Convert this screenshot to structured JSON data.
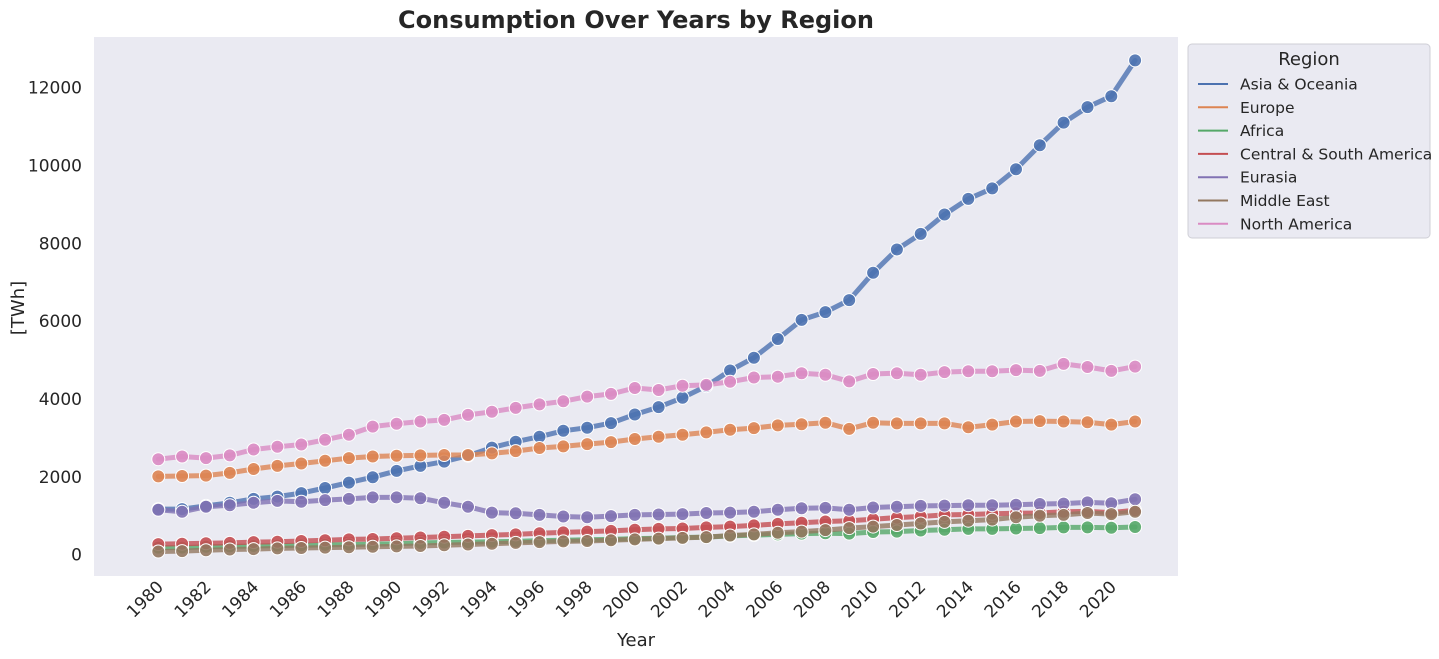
{
  "chart_data": {
    "type": "line",
    "title": "Consumption Over Years by Region",
    "xlabel": "Year",
    "ylabel": "[TWh]",
    "xlim": [
      1977.3,
      2022.8
    ],
    "ylim": [
      -550,
      13300
    ],
    "x_ticks": [
      "1980",
      "1982",
      "1984",
      "1986",
      "1988",
      "1990",
      "1992",
      "1994",
      "1996",
      "1998",
      "2000",
      "2002",
      "2004",
      "2006",
      "2008",
      "2010",
      "2012",
      "2014",
      "2016",
      "2018",
      "2020"
    ],
    "y_ticks": [
      "0",
      "2000",
      "4000",
      "6000",
      "8000",
      "10000",
      "12000"
    ],
    "grid": false,
    "legend": {
      "title": "Region",
      "placement": "outside upper-right"
    },
    "x": [
      1980,
      1981,
      1982,
      1983,
      1984,
      1985,
      1986,
      1987,
      1988,
      1989,
      1990,
      1991,
      1992,
      1993,
      1994,
      1995,
      1996,
      1997,
      1998,
      1999,
      2000,
      2001,
      2002,
      2003,
      2004,
      2005,
      2006,
      2007,
      2008,
      2009,
      2010,
      2011,
      2012,
      2013,
      2014,
      2015,
      2016,
      2017,
      2018,
      2019,
      2020,
      2021
    ],
    "series": [
      {
        "name": "Asia & Oceania",
        "color": "#4c72b0",
        "values": [
          1170,
          1170,
          1250,
          1330,
          1430,
          1490,
          1580,
          1710,
          1850,
          1990,
          2150,
          2280,
          2390,
          2540,
          2750,
          2900,
          3030,
          3180,
          3260,
          3380,
          3600,
          3790,
          4030,
          4330,
          4730,
          5060,
          5540,
          6030,
          6230,
          6540,
          7240,
          7840,
          8240,
          8740,
          9140,
          9410,
          9900,
          10520,
          11100,
          11500,
          11780,
          12700
        ]
      },
      {
        "name": "Europe",
        "color": "#dd8452",
        "values": [
          2010,
          2020,
          2030,
          2100,
          2200,
          2280,
          2340,
          2410,
          2480,
          2520,
          2540,
          2550,
          2560,
          2560,
          2600,
          2660,
          2740,
          2780,
          2840,
          2890,
          2970,
          3030,
          3080,
          3140,
          3210,
          3250,
          3320,
          3350,
          3390,
          3230,
          3390,
          3370,
          3370,
          3370,
          3270,
          3340,
          3420,
          3430,
          3420,
          3400,
          3340,
          3420
        ]
      },
      {
        "name": "Africa",
        "color": "#55a868",
        "values": [
          180,
          180,
          200,
          210,
          220,
          230,
          240,
          250,
          260,
          270,
          280,
          300,
          310,
          320,
          330,
          340,
          360,
          370,
          380,
          390,
          410,
          420,
          440,
          450,
          480,
          500,
          520,
          540,
          550,
          540,
          580,
          590,
          620,
          640,
          660,
          660,
          670,
          680,
          700,
          700,
          690,
          710
        ]
      },
      {
        "name": "Central & South America",
        "color": "#c44e52",
        "values": [
          270,
          280,
          290,
          300,
          320,
          330,
          350,
          370,
          390,
          400,
          420,
          440,
          460,
          480,
          500,
          520,
          550,
          570,
          590,
          610,
          640,
          660,
          670,
          700,
          720,
          750,
          790,
          820,
          850,
          870,
          910,
          950,
          980,
          1020,
          1030,
          1050,
          1060,
          1070,
          1100,
          1110,
          1080,
          1140
        ]
      },
      {
        "name": "Eurasia",
        "color": "#8172b3",
        "values": [
          1150,
          1100,
          1230,
          1270,
          1330,
          1380,
          1360,
          1400,
          1430,
          1470,
          1470,
          1450,
          1330,
          1230,
          1080,
          1060,
          1020,
          980,
          960,
          990,
          1020,
          1030,
          1040,
          1070,
          1080,
          1100,
          1150,
          1190,
          1200,
          1150,
          1210,
          1230,
          1250,
          1260,
          1270,
          1270,
          1280,
          1300,
          1310,
          1340,
          1320,
          1420
        ]
      },
      {
        "name": "Middle East",
        "color": "#937860",
        "values": [
          80,
          90,
          110,
          130,
          140,
          160,
          170,
          180,
          190,
          200,
          210,
          220,
          240,
          260,
          280,
          300,
          320,
          340,
          350,
          370,
          390,
          410,
          430,
          450,
          490,
          520,
          560,
          590,
          630,
          680,
          720,
          760,
          800,
          840,
          870,
          900,
          960,
          1000,
          1020,
          1070,
          1040,
          1100
        ]
      },
      {
        "name": "North America",
        "color": "#da8bc3",
        "values": [
          2450,
          2520,
          2480,
          2550,
          2700,
          2770,
          2830,
          2950,
          3080,
          3290,
          3360,
          3420,
          3460,
          3590,
          3670,
          3770,
          3860,
          3940,
          4060,
          4130,
          4280,
          4230,
          4340,
          4360,
          4440,
          4550,
          4570,
          4660,
          4620,
          4450,
          4640,
          4660,
          4620,
          4690,
          4710,
          4710,
          4740,
          4720,
          4900,
          4820,
          4720,
          4830
        ]
      }
    ]
  }
}
